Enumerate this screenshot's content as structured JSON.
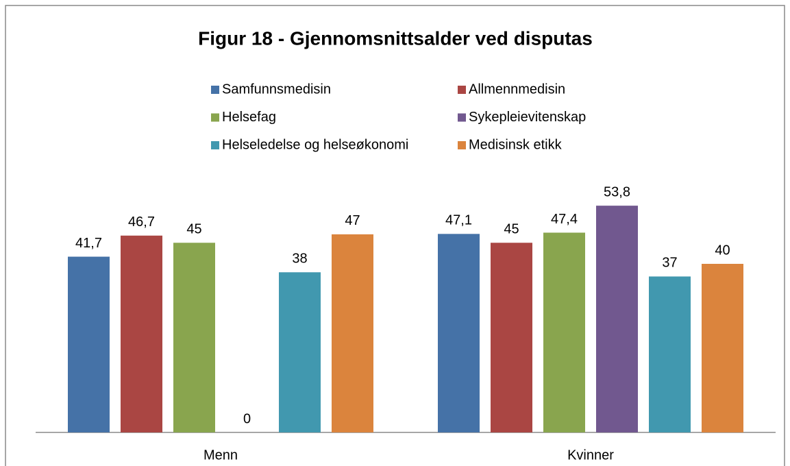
{
  "chart_data": {
    "type": "bar",
    "title": "Figur 18 - Gjennomsnittsalder ved disputas",
    "categories": [
      "Menn",
      "Kvinner"
    ],
    "series": [
      {
        "name": "Samfunnsmedisin",
        "color": "#4572a7",
        "values": [
          41.7,
          47.1
        ],
        "value_labels": [
          "41,7",
          "47,1"
        ]
      },
      {
        "name": "Allmennmedisin",
        "color": "#aa4643",
        "values": [
          46.7,
          45
        ],
        "value_labels": [
          "46,7",
          "45"
        ]
      },
      {
        "name": "Helsefag",
        "color": "#89a54e",
        "values": [
          45,
          47.4
        ],
        "value_labels": [
          "45",
          "47,4"
        ]
      },
      {
        "name": "Sykepleievitenskap",
        "color": "#71588f",
        "values": [
          0,
          53.8
        ],
        "value_labels": [
          "0",
          "53,8"
        ]
      },
      {
        "name": "Helseledelse og helseøkonomi",
        "color": "#4198af",
        "values": [
          38,
          37
        ],
        "value_labels": [
          "38",
          "37"
        ]
      },
      {
        "name": "Medisinsk etikk",
        "color": "#db843d",
        "values": [
          47,
          40
        ],
        "value_labels": [
          "47",
          "40"
        ]
      }
    ],
    "ylim": [
      0,
      60
    ],
    "legend": "top"
  }
}
